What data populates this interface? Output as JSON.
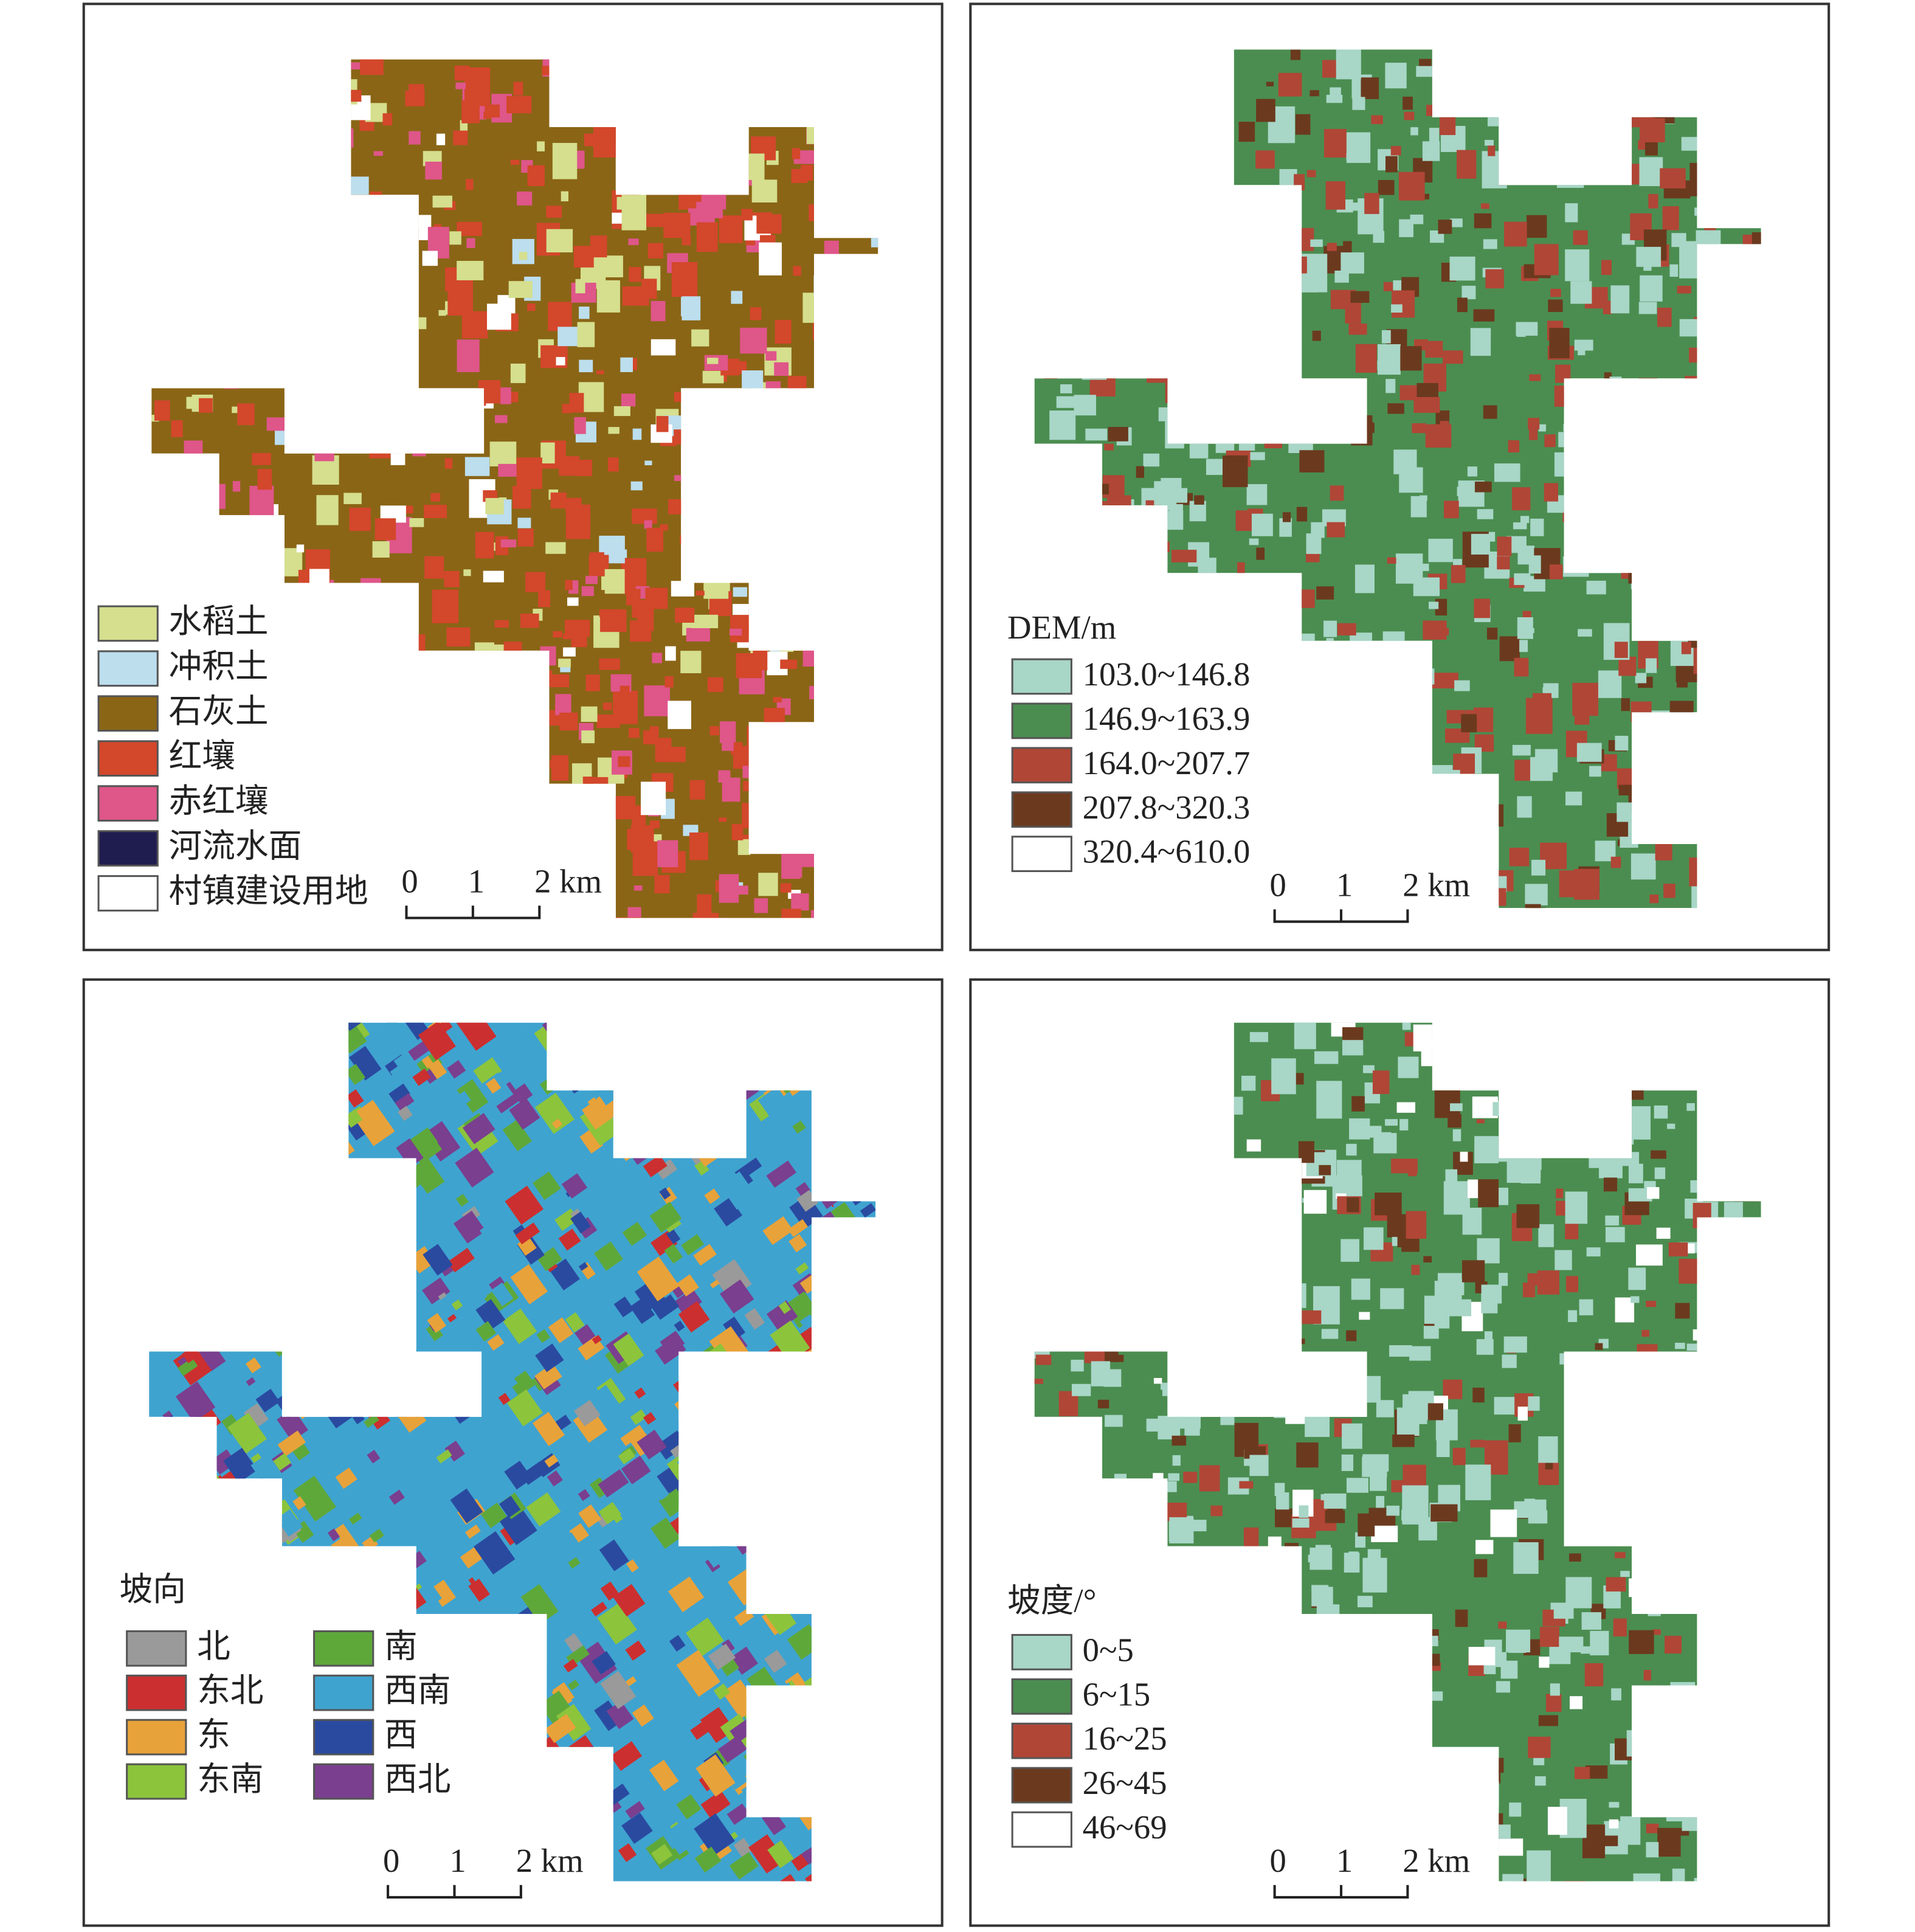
{
  "panels": [
    {
      "legend": {
        "items": [
          {
            "label": "水稻土",
            "color": "#d5df8e"
          },
          {
            "label": "冲积土",
            "color": "#bcdeed"
          },
          {
            "label": "石灰土",
            "color": "#8a6516"
          },
          {
            "label": "红壤",
            "color": "#d3472b"
          },
          {
            "label": "赤红壤",
            "color": "#df5689"
          },
          {
            "label": "河流水面",
            "color": "#1f1d4f"
          },
          {
            "label": "村镇建设用地",
            "color": "#ffffff"
          }
        ]
      },
      "scale_bar": {
        "labels": [
          "0",
          "1",
          "2 km"
        ]
      }
    },
    {
      "legend": {
        "title": "DEM/m",
        "items": [
          {
            "label": "103.0~146.8",
            "color": "#a8d6c7"
          },
          {
            "label": "146.9~163.9",
            "color": "#4b8d50"
          },
          {
            "label": "164.0~207.7",
            "color": "#b04636"
          },
          {
            "label": "207.8~320.3",
            "color": "#6b3a1e"
          },
          {
            "label": "320.4~610.0",
            "color": "#ffffff"
          }
        ]
      },
      "scale_bar": {
        "labels": [
          "0",
          "1",
          "2 km"
        ]
      }
    },
    {
      "legend": {
        "title": "坡向",
        "items": [
          {
            "label": "北",
            "color": "#9a9a9a"
          },
          {
            "label": "东北",
            "color": "#cc2f2f"
          },
          {
            "label": "东",
            "color": "#e8a23a"
          },
          {
            "label": "东南",
            "color": "#8cc43c"
          },
          {
            "label": "南",
            "color": "#5ea83a"
          },
          {
            "label": "西南",
            "color": "#3fa3cf"
          },
          {
            "label": "西",
            "color": "#2a4aa0"
          },
          {
            "label": "西北",
            "color": "#7a3f8f"
          }
        ]
      },
      "scale_bar": {
        "labels": [
          "0",
          "1",
          "2 km"
        ]
      }
    },
    {
      "legend": {
        "title": "坡度/°",
        "items": [
          {
            "label": "0~5",
            "color": "#a8d6c7"
          },
          {
            "label": "6~15",
            "color": "#4b8d50"
          },
          {
            "label": "16~25",
            "color": "#b04636"
          },
          {
            "label": "26~45",
            "color": "#6b3a1e"
          },
          {
            "label": "46~69",
            "color": "#ffffff"
          }
        ]
      },
      "scale_bar": {
        "labels": [
          "0",
          "1",
          "2 km"
        ]
      }
    }
  ]
}
